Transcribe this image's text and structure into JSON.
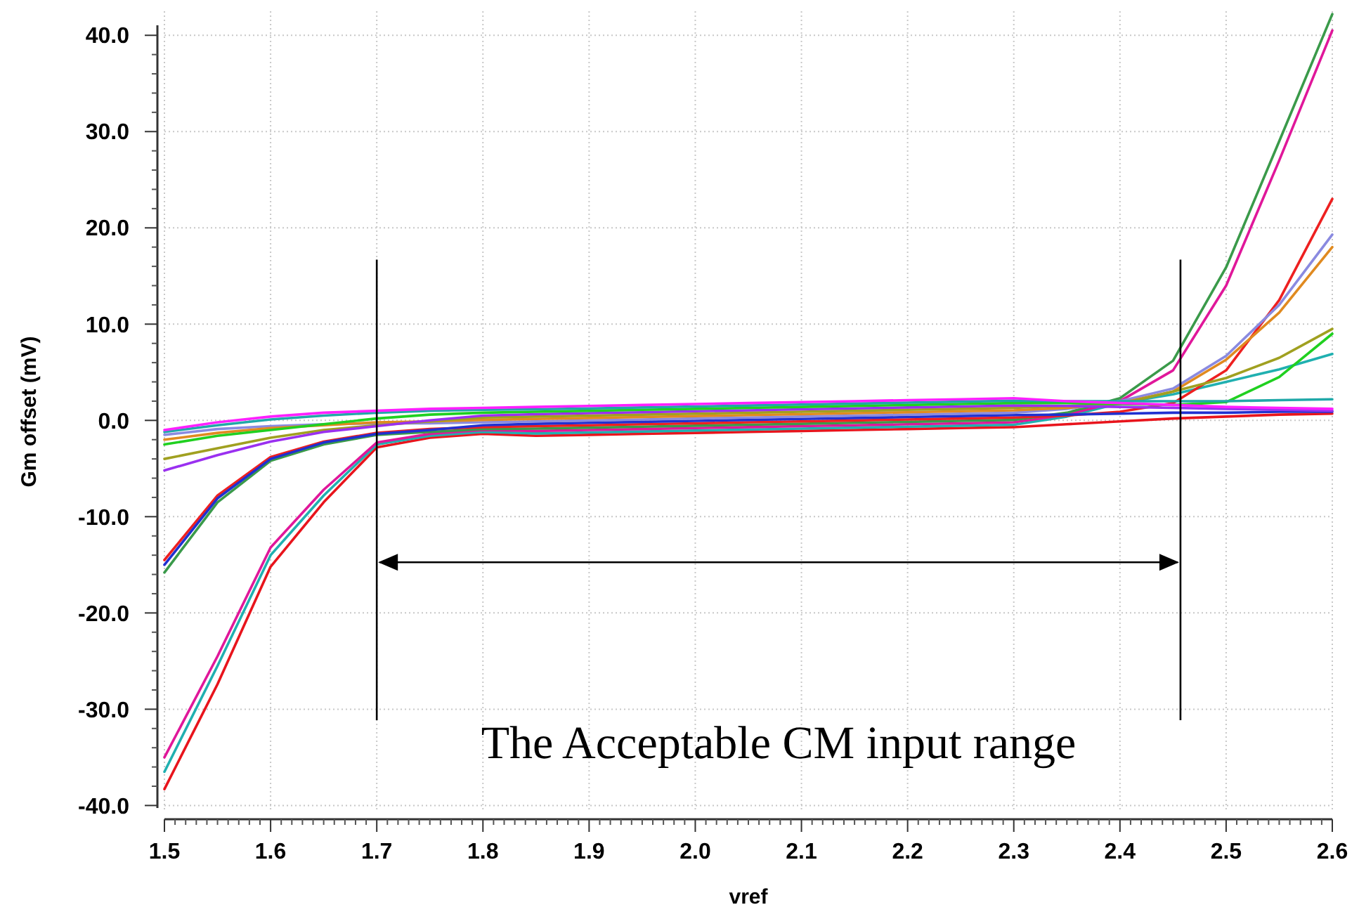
{
  "chart_data": {
    "type": "line",
    "xlabel": "vref",
    "ylabel": "Gm offset (mV)",
    "x": [
      1.5,
      1.55,
      1.6,
      1.65,
      1.7,
      1.75,
      1.8,
      1.85,
      1.9,
      1.95,
      2.0,
      2.05,
      2.1,
      2.15,
      2.2,
      2.25,
      2.3,
      2.35,
      2.4,
      2.45,
      2.5,
      2.55,
      2.6
    ],
    "xlim": [
      1.5,
      2.6
    ],
    "xticks": [
      1.5,
      1.6,
      1.7,
      1.8,
      1.9,
      {
        "value": 2.0,
        "label": "2.0"
      },
      2.1,
      2.2,
      2.3,
      2.4,
      2.5,
      2.6
    ],
    "ylim": [
      -40.7,
      42.5
    ],
    "yticks": [
      {
        "value": -40,
        "label": "-40.0"
      },
      {
        "value": -30,
        "label": "-30.0"
      },
      {
        "value": -20,
        "label": "-20.0"
      },
      {
        "value": -10,
        "label": "-10.0"
      },
      {
        "value": 0,
        "label": "0.0"
      },
      {
        "value": 10,
        "label": "10.0"
      },
      {
        "value": 20,
        "label": "20.0"
      },
      {
        "value": 30,
        "label": "30.0"
      },
      {
        "value": 40,
        "label": "40.0"
      }
    ],
    "grid": true,
    "marker": "none",
    "line_style": "solid",
    "series": [
      {
        "color": "#e8141c",
        "values": [
          -38.3,
          -27.4,
          -15.2,
          -8.5,
          -2.8,
          -1.8,
          -1.4,
          -1.6,
          -1.5,
          -1.4,
          -1.3,
          -1.2,
          -1.1,
          -1.0,
          -0.9,
          -0.8,
          -0.7,
          -0.4,
          -0.1,
          0.2,
          0.4,
          0.6,
          0.7
        ]
      },
      {
        "color": "#20b0b0",
        "values": [
          -36.5,
          -25.5,
          -14,
          -7.8,
          -2.5,
          -1.6,
          -1.2,
          -1.35,
          -1.25,
          -1.15,
          -1.05,
          -0.95,
          -0.85,
          -0.75,
          -0.65,
          -0.55,
          -0.45,
          0.4,
          1.8,
          2.7,
          4.0,
          5.3,
          6.9
        ]
      },
      {
        "color": "#e0179a",
        "values": [
          -35,
          -24.5,
          -13.2,
          -7.2,
          -2.3,
          -1.4,
          -1.0,
          -1.1,
          -1.0,
          -0.9,
          -0.8,
          -0.7,
          -0.6,
          -0.5,
          -0.4,
          -0.3,
          -0.2,
          0.6,
          2.0,
          5.2,
          14,
          27,
          40.5
        ]
      },
      {
        "color": "#3a9a4a",
        "values": [
          -15.8,
          -8.5,
          -4.2,
          -2.5,
          -1.5,
          -1.2,
          -0.9,
          -0.85,
          -0.75,
          -0.65,
          -0.55,
          -0.45,
          -0.35,
          -0.25,
          -0.15,
          -0.05,
          0.05,
          0.8,
          2.3,
          6.2,
          15.9,
          29,
          42.2
        ]
      },
      {
        "color": "#ee2020",
        "values": [
          -14.5,
          -7.8,
          -3.8,
          -2.2,
          -1.3,
          -0.9,
          -0.7,
          -0.6,
          -0.5,
          -0.4,
          -0.3,
          -0.2,
          -0.1,
          0,
          0.1,
          0.2,
          0.3,
          0.5,
          0.9,
          1.8,
          5.2,
          12.5,
          23
        ]
      },
      {
        "color": "#2030d0",
        "values": [
          -15,
          -8.1,
          -4,
          -2.3,
          -1.4,
          -1.0,
          -0.5,
          -0.35,
          -0.25,
          -0.15,
          -0.05,
          0.05,
          0.15,
          0.25,
          0.35,
          0.45,
          0.55,
          0.6,
          0.7,
          0.8,
          0.8,
          0.9,
          0.9
        ]
      },
      {
        "color": "#8a8ae0",
        "values": [
          -1.5,
          -0.9,
          -0.6,
          -0.4,
          -0.3,
          -0.3,
          -0.2,
          -0.1,
          0,
          0.1,
          0.2,
          0.3,
          0.4,
          0.5,
          0.6,
          0.7,
          0.8,
          1.2,
          2.0,
          3.3,
          6.7,
          12,
          19.3
        ]
      },
      {
        "color": "#e08a20",
        "values": [
          -2,
          -1.3,
          -0.8,
          -0.5,
          -0.2,
          -0.1,
          0.05,
          0.15,
          0.25,
          0.35,
          0.45,
          0.55,
          0.65,
          0.75,
          0.85,
          0.95,
          1.05,
          1.3,
          1.8,
          3.0,
          6.3,
          11.2,
          18
        ]
      },
      {
        "color": "#a0a020",
        "values": [
          -4,
          -2.9,
          -1.8,
          -1.0,
          -0.5,
          -0.1,
          0.3,
          0.4,
          0.5,
          0.6,
          0.7,
          0.8,
          0.9,
          1.0,
          1.1,
          1.2,
          1.3,
          1.5,
          1.7,
          3.0,
          4.4,
          6.5,
          9.5
        ]
      },
      {
        "color": "#9a30f0",
        "values": [
          -5.2,
          -3.6,
          -2.2,
          -1.2,
          -0.6,
          0,
          0.5,
          0.65,
          0.75,
          0.85,
          0.95,
          1.05,
          1.15,
          1.25,
          1.35,
          1.45,
          1.55,
          1.5,
          1.4,
          1.3,
          1.2,
          1.1,
          1.0
        ]
      },
      {
        "color": "#20d020",
        "values": [
          -2.5,
          -1.6,
          -1.0,
          -0.4,
          0.2,
          0.6,
          0.8,
          0.9,
          1.0,
          1.1,
          1.2,
          1.3,
          1.4,
          1.5,
          1.6,
          1.7,
          1.8,
          1.8,
          1.7,
          1.6,
          1.9,
          4.5,
          9
        ]
      },
      {
        "color": "#20a8a8",
        "values": [
          -1.2,
          -0.5,
          0.1,
          0.5,
          0.8,
          1.0,
          1.1,
          1.15,
          1.25,
          1.35,
          1.45,
          1.55,
          1.65,
          1.75,
          1.85,
          1.95,
          2.05,
          2.0,
          2.0,
          2.0,
          2.0,
          2.1,
          2.2
        ]
      },
      {
        "color": "#ff20ff",
        "values": [
          -1,
          -0.2,
          0.4,
          0.8,
          1.0,
          1.2,
          1.3,
          1.4,
          1.5,
          1.6,
          1.7,
          1.8,
          1.9,
          2.0,
          2.1,
          2.2,
          2.3,
          2.0,
          1.8,
          1.6,
          1.4,
          1.3,
          1.2
        ]
      }
    ],
    "ref_lines": [
      {
        "axis": "x",
        "value": 1.7,
        "color": "#000000"
      },
      {
        "axis": "x",
        "value": 2.457,
        "color": "#000000"
      }
    ],
    "annotations": [
      "The Acceptable CM input range"
    ]
  }
}
